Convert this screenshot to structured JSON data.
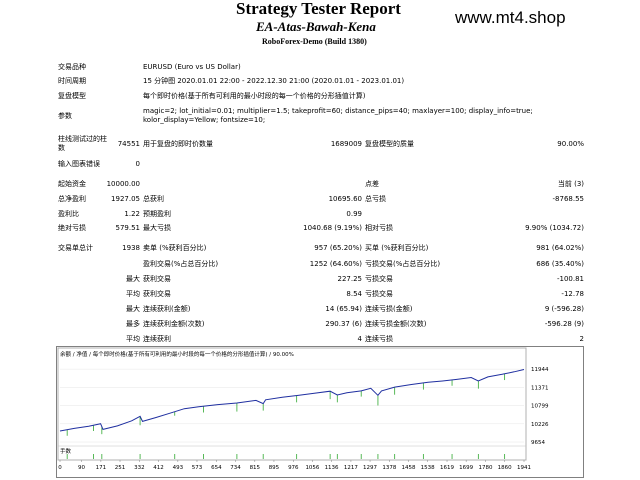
{
  "header": {
    "title": "Strategy Tester Report",
    "subtitle": "EA-Atas-Bawah-Kena",
    "build": "RoboForex-Demo (Build 1380)",
    "watermark": "www.mt4.shop"
  },
  "settings": {
    "symbol_label": "交易品种",
    "symbol_value": "EURUSD (Euro vs US Dollar)",
    "period_label": "时间周期",
    "period_value": "15 分钟图 2020.01.01 22:00 - 2022.12.30 21:00 (2020.01.01 - 2023.01.01)",
    "model_label": "复盘模型",
    "model_value": "每个即时价格(基于所有可利用的最小时段的每一个价格的分形插值计算)",
    "params_label": "参数",
    "params_line1": "magic=2; lot_initial=0.01; multiplier=1.5; takeprofit=60; distance_pips=40; maxlayer=100; display_info=true;",
    "params_line2": "kolor_display=Yellow; fontsize=10;"
  },
  "stats": {
    "bars_label_1": "柱线测试过的柱",
    "bars_label_2": "数",
    "bars_value": "74551",
    "ticks_label": "用于复盘的即时价数量",
    "ticks_value": "1689009",
    "quality_label": "复盘模型的质量",
    "quality_value": "90.00%",
    "mismatch_label": "输入图表错误",
    "mismatch_value": "0",
    "deposit_label": "起始资金",
    "deposit_value": "10000.00",
    "spread_label": "点差",
    "spread_value": "当前 (3)",
    "net_label": "总净盈利",
    "net_value": "1927.05",
    "gross_profit_label": "总获利",
    "gross_profit_value": "10695.60",
    "gross_loss_label": "总亏损",
    "gross_loss_value": "-8768.55",
    "pf_label": "盈利比",
    "pf_value": "1.22",
    "expected_label": "预期盈利",
    "expected_value": "0.99",
    "abs_dd_label": "绝对亏损",
    "abs_dd_value": "579.51",
    "max_dd_label": "最大亏损",
    "max_dd_value": "1040.68 (9.19%)",
    "rel_dd_label": "相对亏损",
    "rel_dd_value": "9.90% (1034.72)",
    "total_trades_label": "交易单总计",
    "total_trades_value": "1938",
    "short_label": "卖单 (%获利百分比)",
    "short_value": "957 (65.20%)",
    "long_label": "买单 (%获利百分比)",
    "long_value": "981 (64.02%)",
    "profit_trades_label": "盈利交易(%占总百分比)",
    "profit_trades_value": "1252 (64.60%)",
    "loss_trades_label": "亏损交易(%占总百分比)",
    "loss_trades_value": "686 (35.40%)",
    "largest_label": "最大",
    "largest_profit_label": "获利交易",
    "largest_profit_value": "227.25",
    "largest_loss_label": "亏损交易",
    "largest_loss_value": "-100.81",
    "average_label": "平均",
    "average_profit_label": "获利交易",
    "average_profit_value": "8.54",
    "average_loss_label": "亏损交易",
    "average_loss_value": "-12.78",
    "max_label": "最大",
    "cons_wins_label": "连续获利(金额)",
    "cons_wins_value": "14 (65.94)",
    "cons_losses_label": "连续亏损(金额)",
    "cons_losses_value": "9 (-596.28)",
    "most_label": "最多",
    "cons_profit_label": "连续获利金额(次数)",
    "cons_profit_value": "290.37 (6)",
    "cons_loss_label": "连续亏损金额(次数)",
    "cons_loss_value": "-596.28 (9)",
    "avg2_label": "平均",
    "avg_cons_wins_label": "连续获利",
    "avg_cons_wins_value": "4",
    "avg_cons_losses_label": "连续亏损",
    "avg_cons_losses_value": "2"
  },
  "chart_data": {
    "type": "line",
    "legend": "余额 / 净值 / 每个即时价格(基于所有可利用的最小时段的每一个价格的分形插值计算) / 90.00%",
    "lot_label": "手数",
    "ylim": [
      9654,
      12230
    ],
    "yticks": [
      "11944",
      "11371",
      "10799",
      "10226",
      "9654"
    ],
    "xticks": [
      "0",
      "90",
      "171",
      "251",
      "332",
      "412",
      "493",
      "573",
      "654",
      "734",
      "815",
      "895",
      "976",
      "1056",
      "1136",
      "1217",
      "1297",
      "1378",
      "1458",
      "1538",
      "1619",
      "1699",
      "1780",
      "1860",
      "1941"
    ],
    "xlim": [
      0,
      1941
    ],
    "series": [
      {
        "color": "#1f2fa0",
        "x": [
          0,
          60,
          120,
          170,
          180,
          240,
          300,
          335,
          345,
          400,
          460,
          520,
          580,
          660,
          740,
          820,
          850,
          860,
          930,
          1000,
          1060,
          1130,
          1160,
          1200,
          1260,
          1300,
          1330,
          1345,
          1400,
          1470,
          1540,
          1600,
          1660,
          1720,
          1750,
          1790,
          1850,
          1900,
          1941
        ],
        "y": [
          10000,
          10080,
          10150,
          10230,
          10050,
          10160,
          10320,
          10460,
          10300,
          10420,
          10560,
          10700,
          10760,
          10830,
          10880,
          10960,
          10860,
          10980,
          11060,
          11120,
          11180,
          11250,
          11130,
          11200,
          11260,
          11340,
          11120,
          11260,
          11380,
          11460,
          11530,
          11570,
          11620,
          11680,
          11570,
          11700,
          11780,
          11860,
          11930
        ]
      }
    ],
    "equity_dips": [
      [
        30,
        9850
      ],
      [
        140,
        10000
      ],
      [
        175,
        9900
      ],
      [
        335,
        10180
      ],
      [
        480,
        10480
      ],
      [
        600,
        10580
      ],
      [
        740,
        10610
      ],
      [
        850,
        10640
      ],
      [
        990,
        10900
      ],
      [
        1130,
        11000
      ],
      [
        1160,
        10900
      ],
      [
        1260,
        11080
      ],
      [
        1330,
        10800
      ],
      [
        1400,
        11140
      ],
      [
        1520,
        11300
      ],
      [
        1640,
        11420
      ],
      [
        1750,
        11330
      ],
      [
        1860,
        11600
      ]
    ]
  }
}
